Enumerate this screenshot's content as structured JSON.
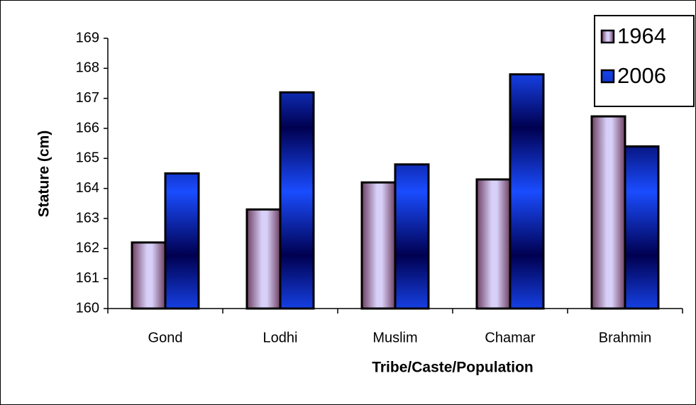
{
  "chart_data": {
    "type": "bar",
    "x_label": "Tribe/Caste/Population",
    "y_label": "Stature (cm)",
    "categories": [
      "Gond",
      "Lodhi",
      "Muslim",
      "Chamar",
      "Brahmin"
    ],
    "series": [
      {
        "name": "1964",
        "color": "#d8d0f8",
        "values": [
          162.2,
          163.3,
          164.2,
          164.3,
          166.4
        ]
      },
      {
        "name": "2006",
        "color": "#1a4cff",
        "values": [
          164.5,
          167.2,
          164.8,
          167.8,
          165.4
        ]
      }
    ],
    "ylim": [
      160,
      169
    ],
    "yticks": [
      160,
      161,
      162,
      163,
      164,
      165,
      166,
      167,
      168,
      169
    ],
    "grid": false,
    "legend": "top-right"
  }
}
